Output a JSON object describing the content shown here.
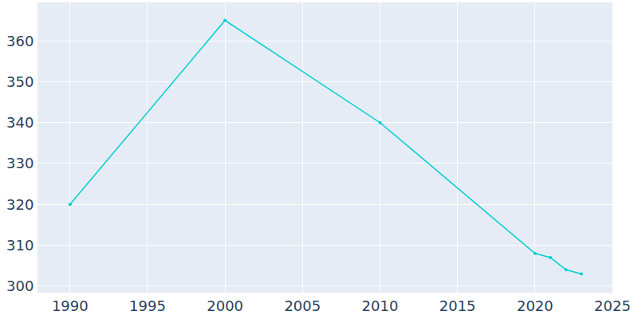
{
  "chart_data": {
    "type": "line",
    "x": [
      1990,
      2000,
      2010,
      2020,
      2021,
      2022,
      2023
    ],
    "values": [
      320,
      365,
      340,
      308,
      307,
      304,
      303
    ],
    "color": "#00ced1",
    "marker": "circle",
    "xlim": [
      1987.9,
      2025
    ],
    "xticks": [
      1990,
      1995,
      2000,
      2005,
      2010,
      2015,
      2020,
      2025
    ],
    "ylim": [
      298.4,
      369.4
    ],
    "yticks": [
      300,
      310,
      320,
      330,
      340,
      350,
      360
    ],
    "grid": true
  }
}
